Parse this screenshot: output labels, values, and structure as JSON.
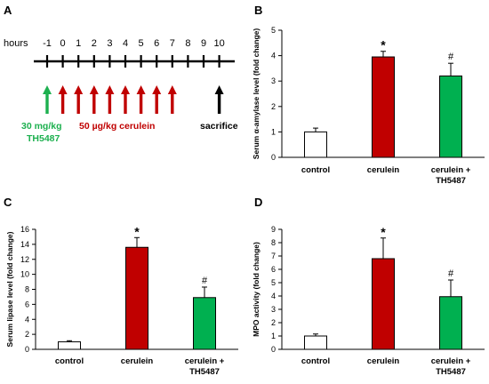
{
  "panels": {
    "A": "A",
    "B": "B",
    "C": "C",
    "D": "D"
  },
  "timeline": {
    "label": "hours",
    "hours": [
      "-1",
      "0",
      "1",
      "2",
      "3",
      "4",
      "5",
      "6",
      "7",
      "8",
      "9",
      "10"
    ],
    "green_arrows": [
      "-1"
    ],
    "red_arrows": [
      "0",
      "1",
      "2",
      "3",
      "4",
      "5",
      "6",
      "7"
    ],
    "black_arrows": [
      "10"
    ],
    "th_dose_line1": "30 mg/kg",
    "th_dose_line2": "TH5487",
    "cerulein_dose": "50 µg/kg cerulein",
    "sacrifice": "sacrifice",
    "colors": {
      "green": "#1db04f",
      "red": "#c00000",
      "black": "#000000"
    }
  },
  "chart_data": [
    {
      "type": "bar",
      "panel": "B",
      "categories": [
        "control",
        "cerulein",
        "cerulein +\nTH5487"
      ],
      "values": [
        1.0,
        3.95,
        3.2
      ],
      "errors": [
        0.15,
        0.22,
        0.5
      ],
      "markers": [
        "",
        "*",
        "#"
      ],
      "colors": [
        "#ffffff",
        "#c00000",
        "#00b050"
      ],
      "ylabel": "Serum α-amylase level (fold change)",
      "ylim": [
        0,
        5
      ],
      "yticks": [
        0,
        1,
        2,
        3,
        4,
        5
      ]
    },
    {
      "type": "bar",
      "panel": "C",
      "categories": [
        "control",
        "cerulein",
        "cerulein +\nTH5487"
      ],
      "values": [
        1.0,
        13.6,
        6.9
      ],
      "errors": [
        0.15,
        1.3,
        1.4
      ],
      "markers": [
        "",
        "*",
        "#"
      ],
      "colors": [
        "#ffffff",
        "#c00000",
        "#00b050"
      ],
      "ylabel": "Serum lipase level (fold change)",
      "ylim": [
        0,
        16
      ],
      "yticks": [
        0,
        2,
        4,
        6,
        8,
        10,
        12,
        14,
        16
      ]
    },
    {
      "type": "bar",
      "panel": "D",
      "categories": [
        "control",
        "cerulein",
        "cerulein +\nTH5487"
      ],
      "values": [
        1.0,
        6.8,
        3.95
      ],
      "errors": [
        0.15,
        1.55,
        1.25
      ],
      "markers": [
        "",
        "*",
        "#"
      ],
      "colors": [
        "#ffffff",
        "#c00000",
        "#00b050"
      ],
      "ylabel": "MPO activity (fold change)",
      "ylim": [
        0,
        9
      ],
      "yticks": [
        0,
        1,
        2,
        3,
        4,
        5,
        6,
        7,
        8,
        9
      ]
    }
  ]
}
